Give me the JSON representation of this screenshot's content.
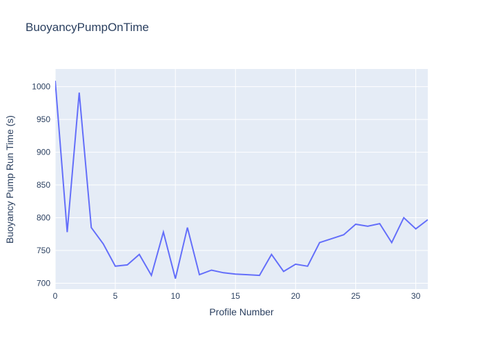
{
  "chart_data": {
    "type": "line",
    "title": "BuoyancyPumpOnTime",
    "xlabel": "Profile Number",
    "ylabel": "Buoyancy Pump Run Time (s)",
    "x": [
      0,
      1,
      2,
      3,
      4,
      5,
      6,
      7,
      8,
      9,
      10,
      11,
      12,
      13,
      14,
      15,
      16,
      17,
      18,
      19,
      20,
      21,
      22,
      23,
      24,
      25,
      26,
      27,
      28,
      29,
      30,
      31
    ],
    "y": [
      1009,
      778,
      991,
      785,
      760,
      726,
      728,
      744,
      712,
      778,
      707,
      785,
      713,
      720,
      716,
      714,
      713,
      712,
      744,
      718,
      729,
      726,
      762,
      768,
      774,
      790,
      787,
      791,
      762,
      800,
      783,
      797
    ],
    "xlim": [
      0,
      31
    ],
    "ylim": [
      691,
      1027
    ],
    "x_ticks": [
      0,
      5,
      10,
      15,
      20,
      25,
      30
    ],
    "y_ticks": [
      700,
      750,
      800,
      850,
      900,
      950,
      1000
    ],
    "grid": true,
    "legend": false,
    "colors": {
      "line": "#636efa",
      "plot_background": "#e5ecf6",
      "grid": "#ffffff",
      "text": "#2a3f5f"
    }
  }
}
